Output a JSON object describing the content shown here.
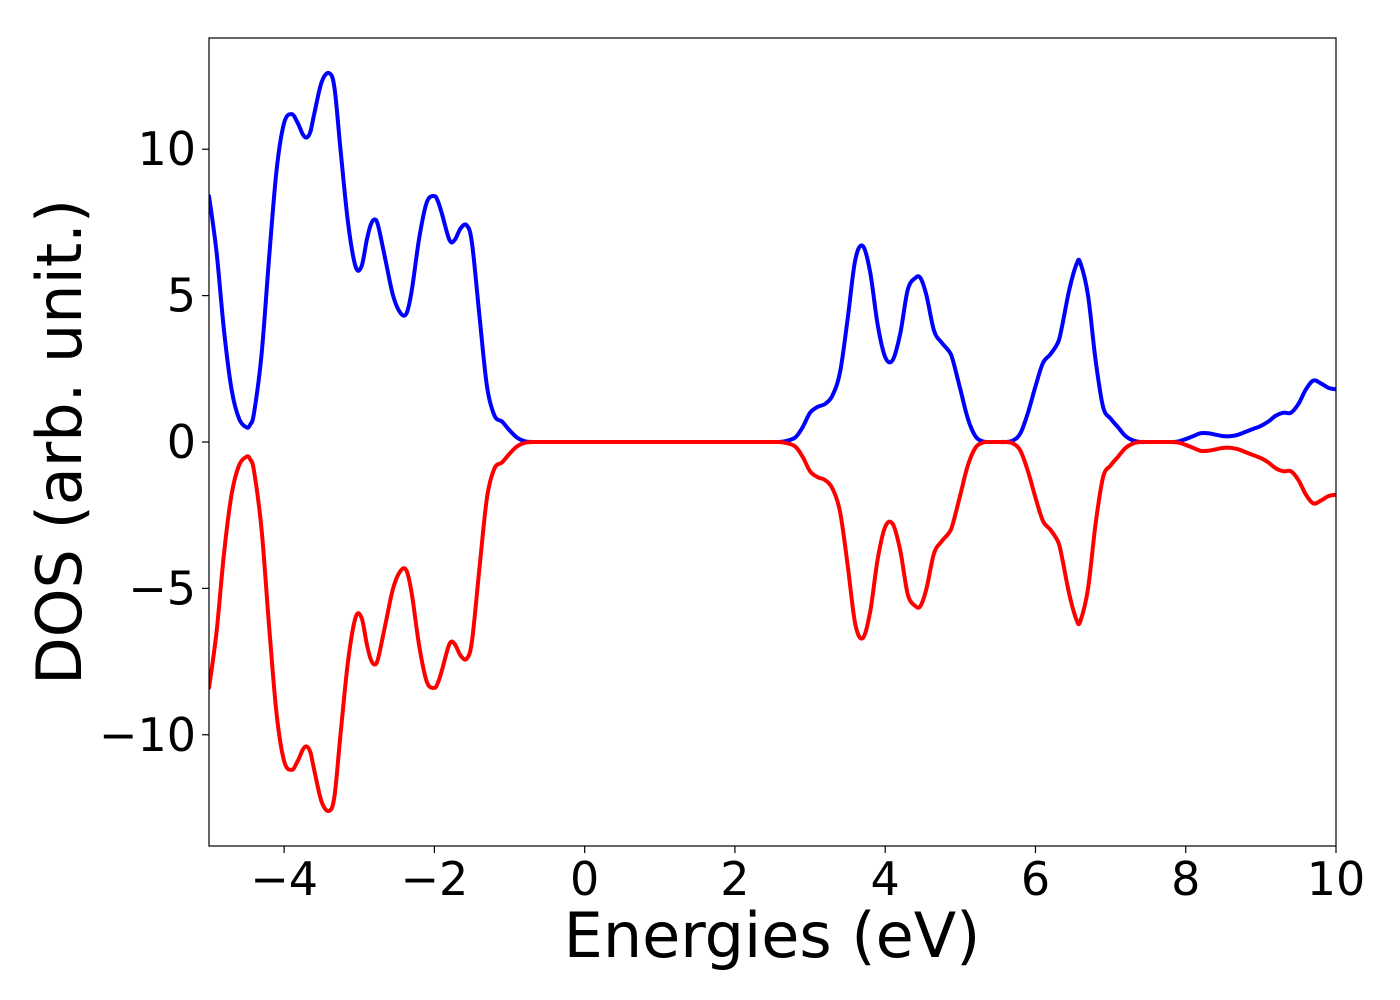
{
  "chart_data": {
    "type": "line",
    "title": "",
    "xlabel": "Energies (eV)",
    "ylabel": "DOS (arb. unit.)",
    "xlim": [
      -5,
      10
    ],
    "ylim": [
      -13.8,
      13.8
    ],
    "xticks": [
      -4,
      -2,
      0,
      2,
      4,
      6,
      8,
      10
    ],
    "xtick_labels": [
      "−4",
      "−2",
      "0",
      "2",
      "4",
      "6",
      "8",
      "10"
    ],
    "yticks": [
      -10,
      -5,
      0,
      5,
      10
    ],
    "ytick_labels": [
      "−10",
      "−5",
      "0",
      "5",
      "10"
    ],
    "grid": false,
    "legend": "none",
    "series": [
      {
        "color": "#0000ff",
        "x": [
          -5.0,
          -4.9,
          -4.8,
          -4.7,
          -4.6,
          -4.5,
          -4.45,
          -4.4,
          -4.3,
          -4.2,
          -4.1,
          -4.0,
          -3.9,
          -3.82,
          -3.75,
          -3.7,
          -3.65,
          -3.6,
          -3.5,
          -3.4,
          -3.33,
          -3.25,
          -3.15,
          -3.05,
          -2.97,
          -2.9,
          -2.85,
          -2.8,
          -2.75,
          -2.65,
          -2.55,
          -2.45,
          -2.37,
          -2.3,
          -2.2,
          -2.1,
          -2.0,
          -1.95,
          -1.9,
          -1.8,
          -1.73,
          -1.65,
          -1.57,
          -1.5,
          -1.4,
          -1.3,
          -1.2,
          -1.1,
          -1.0,
          -0.9,
          -0.8,
          -0.7,
          -0.6,
          -0.5,
          0,
          1,
          2,
          2.5,
          2.65,
          2.8,
          2.9,
          3.0,
          3.1,
          3.2,
          3.3,
          3.4,
          3.5,
          3.6,
          3.7,
          3.8,
          3.9,
          4.0,
          4.1,
          4.2,
          4.3,
          4.4,
          4.47,
          4.55,
          4.65,
          4.75,
          4.85,
          4.9,
          5.0,
          5.1,
          5.2,
          5.3,
          5.4,
          5.5,
          5.6,
          5.7,
          5.8,
          5.9,
          6.0,
          6.1,
          6.2,
          6.3,
          6.35,
          6.45,
          6.55,
          6.6,
          6.7,
          6.8,
          6.9,
          7.0,
          7.1,
          7.2,
          7.3,
          7.4,
          7.5,
          7.6,
          7.7,
          7.8,
          7.9,
          8.0,
          8.1,
          8.2,
          8.3,
          8.4,
          8.5,
          8.6,
          8.7,
          8.8,
          8.9,
          9.0,
          9.1,
          9.2,
          9.3,
          9.4,
          9.5,
          9.6,
          9.7,
          9.8,
          9.9,
          10.0
        ],
        "y": [
          8.4,
          6.5,
          3.8,
          1.8,
          0.8,
          0.5,
          0.6,
          1.0,
          3.0,
          6.3,
          9.3,
          10.9,
          11.2,
          10.9,
          10.5,
          10.4,
          10.6,
          11.2,
          12.3,
          12.6,
          12.1,
          10.0,
          7.5,
          6.0,
          6.0,
          6.9,
          7.4,
          7.6,
          7.4,
          6.2,
          5.0,
          4.4,
          4.4,
          5.2,
          7.0,
          8.2,
          8.4,
          8.2,
          7.8,
          6.9,
          6.9,
          7.3,
          7.4,
          6.8,
          4.3,
          1.9,
          0.9,
          0.7,
          0.4,
          0.15,
          0.03,
          0.0,
          0.0,
          0.0,
          0.0,
          0.0,
          0.0,
          0.0,
          0.02,
          0.15,
          0.5,
          1.0,
          1.2,
          1.3,
          1.6,
          2.4,
          4.2,
          6.2,
          6.7,
          5.8,
          4.0,
          2.9,
          2.8,
          3.7,
          5.2,
          5.6,
          5.6,
          5.0,
          3.8,
          3.4,
          3.1,
          2.8,
          1.8,
          0.8,
          0.2,
          0.02,
          0.0,
          0.0,
          0.0,
          0.05,
          0.3,
          1.0,
          1.9,
          2.7,
          3.0,
          3.4,
          3.9,
          5.2,
          6.1,
          6.1,
          5.0,
          2.8,
          1.2,
          0.8,
          0.5,
          0.2,
          0.05,
          0.0,
          0.0,
          0.0,
          0.0,
          0.0,
          0.02,
          0.1,
          0.2,
          0.3,
          0.3,
          0.25,
          0.2,
          0.2,
          0.25,
          0.35,
          0.45,
          0.55,
          0.7,
          0.9,
          1.0,
          1.0,
          1.3,
          1.8,
          2.1,
          2.0,
          1.85,
          1.8
        ]
      },
      {
        "color": "#ff0000",
        "x": [
          -5.0,
          -4.9,
          -4.8,
          -4.7,
          -4.6,
          -4.5,
          -4.45,
          -4.4,
          -4.3,
          -4.2,
          -4.1,
          -4.0,
          -3.9,
          -3.82,
          -3.75,
          -3.7,
          -3.65,
          -3.6,
          -3.5,
          -3.4,
          -3.33,
          -3.25,
          -3.15,
          -3.05,
          -2.97,
          -2.9,
          -2.85,
          -2.8,
          -2.75,
          -2.65,
          -2.55,
          -2.45,
          -2.37,
          -2.3,
          -2.2,
          -2.1,
          -2.0,
          -1.95,
          -1.9,
          -1.8,
          -1.73,
          -1.65,
          -1.57,
          -1.5,
          -1.4,
          -1.3,
          -1.2,
          -1.1,
          -1.0,
          -0.9,
          -0.8,
          -0.7,
          -0.6,
          -0.5,
          0,
          1,
          2,
          2.5,
          2.65,
          2.8,
          2.9,
          3.0,
          3.1,
          3.2,
          3.3,
          3.4,
          3.5,
          3.6,
          3.7,
          3.8,
          3.9,
          4.0,
          4.1,
          4.2,
          4.3,
          4.4,
          4.47,
          4.55,
          4.65,
          4.75,
          4.85,
          4.9,
          5.0,
          5.1,
          5.2,
          5.3,
          5.4,
          5.5,
          5.6,
          5.7,
          5.8,
          5.9,
          6.0,
          6.1,
          6.2,
          6.3,
          6.35,
          6.45,
          6.55,
          6.6,
          6.7,
          6.8,
          6.9,
          7.0,
          7.1,
          7.2,
          7.3,
          7.4,
          7.5,
          7.6,
          7.7,
          7.8,
          7.9,
          8.0,
          8.1,
          8.2,
          8.3,
          8.4,
          8.5,
          8.6,
          8.7,
          8.8,
          8.9,
          9.0,
          9.1,
          9.2,
          9.3,
          9.4,
          9.5,
          9.6,
          9.7,
          9.8,
          9.9,
          10.0
        ],
        "y": [
          -8.4,
          -6.5,
          -3.8,
          -1.8,
          -0.8,
          -0.5,
          -0.6,
          -1.0,
          -3.0,
          -6.3,
          -9.3,
          -10.9,
          -11.2,
          -10.9,
          -10.5,
          -10.4,
          -10.6,
          -11.2,
          -12.3,
          -12.6,
          -12.1,
          -10.0,
          -7.5,
          -6.0,
          -6.0,
          -6.9,
          -7.4,
          -7.6,
          -7.4,
          -6.2,
          -5.0,
          -4.4,
          -4.4,
          -5.2,
          -7.0,
          -8.2,
          -8.4,
          -8.2,
          -7.8,
          -6.9,
          -6.9,
          -7.3,
          -7.4,
          -6.8,
          -4.3,
          -1.9,
          -0.9,
          -0.7,
          -0.4,
          -0.15,
          -0.03,
          0.0,
          0.0,
          0.0,
          0.0,
          0.0,
          0.0,
          0.0,
          -0.02,
          -0.15,
          -0.5,
          -1.0,
          -1.2,
          -1.3,
          -1.6,
          -2.4,
          -4.2,
          -6.2,
          -6.7,
          -5.8,
          -4.0,
          -2.9,
          -2.8,
          -3.7,
          -5.2,
          -5.6,
          -5.6,
          -5.0,
          -3.8,
          -3.4,
          -3.1,
          -2.8,
          -1.8,
          -0.8,
          -0.2,
          -0.02,
          0.0,
          0.0,
          0.0,
          -0.05,
          -0.3,
          -1.0,
          -1.9,
          -2.7,
          -3.0,
          -3.4,
          -3.9,
          -5.2,
          -6.1,
          -6.1,
          -5.0,
          -2.8,
          -1.2,
          -0.8,
          -0.5,
          -0.2,
          -0.05,
          0.0,
          0.0,
          0.0,
          0.0,
          0.0,
          -0.02,
          -0.1,
          -0.2,
          -0.3,
          -0.3,
          -0.25,
          -0.2,
          -0.2,
          -0.25,
          -0.35,
          -0.45,
          -0.55,
          -0.7,
          -0.9,
          -1.0,
          -1.0,
          -1.3,
          -1.8,
          -2.1,
          -2.0,
          -1.85,
          -1.8
        ]
      }
    ]
  }
}
